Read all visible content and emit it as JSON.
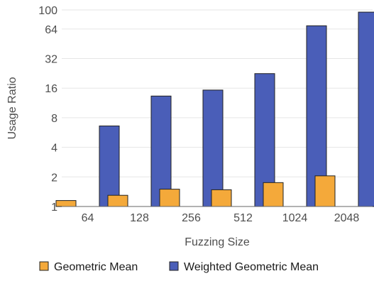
{
  "chart_data": {
    "type": "bar",
    "scale": "log2",
    "categories": [
      "64",
      "128",
      "256",
      "512",
      "1024",
      "2048"
    ],
    "series": [
      {
        "name": "Geometric Mean",
        "color": "#f4a93a",
        "values": [
          1.15,
          1.3,
          1.5,
          1.48,
          1.75,
          2.05
        ]
      },
      {
        "name": "Weighted Geometric Mean",
        "color": "#4a5eb8",
        "values": [
          6.6,
          13.3,
          15.3,
          22.5,
          69,
          95
        ]
      }
    ],
    "y_ticks": [
      "1",
      "2",
      "4",
      "8",
      "16",
      "32",
      "64",
      "100"
    ],
    "y_tick_values": [
      1,
      2,
      4,
      8,
      16,
      32,
      64,
      100
    ],
    "ylim": [
      1,
      100
    ],
    "xlabel": "Fuzzing Size",
    "ylabel": "Usage Ratio",
    "grid": "horizontal",
    "legend_position": "bottom"
  }
}
